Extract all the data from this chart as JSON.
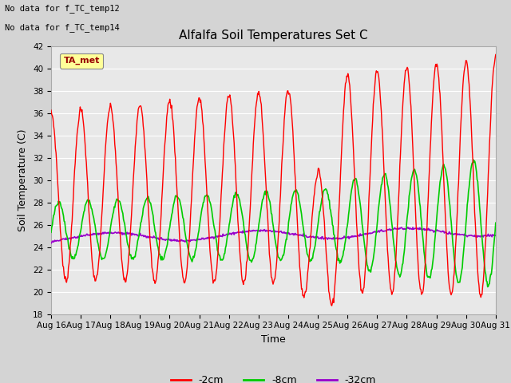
{
  "title": "Alfalfa Soil Temperatures Set C",
  "xlabel": "Time",
  "ylabel": "Soil Temperature (C)",
  "ylim": [
    18,
    42
  ],
  "xlim_days": 15,
  "x_tick_labels": [
    "Aug 16",
    "Aug 17",
    "Aug 18",
    "Aug 19",
    "Aug 20",
    "Aug 21",
    "Aug 22",
    "Aug 23",
    "Aug 24",
    "Aug 25",
    "Aug 26",
    "Aug 27",
    "Aug 28",
    "Aug 29",
    "Aug 30",
    "Aug 31"
  ],
  "line_colors": [
    "red",
    "#00cc00",
    "#9900cc"
  ],
  "line_labels": [
    "-2cm",
    "-8cm",
    "-32cm"
  ],
  "no_data_text": [
    "No data for f_TC_temp12",
    "No data for f_TC_temp14"
  ],
  "legend_label": "TA_met",
  "legend_bg": "#ffff99",
  "fig_bg": "#d4d4d4",
  "plot_bg": "#e8e8e8",
  "title_fontsize": 11,
  "axis_fontsize": 9,
  "tick_fontsize": 7.5
}
